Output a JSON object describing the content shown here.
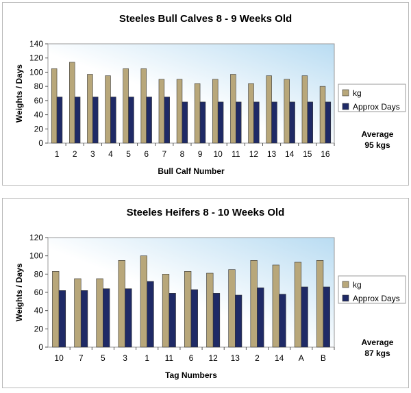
{
  "chart_data": [
    {
      "type": "bar",
      "title": "Steeles Bull Calves 8 - 9 Weeks Old",
      "xlabel": "Bull Calf Number",
      "ylabel": "Weights / Days",
      "ylim": [
        0,
        140
      ],
      "yticks": [
        0,
        20,
        40,
        60,
        80,
        100,
        120,
        140
      ],
      "grid": false,
      "legend_position": "right",
      "categories": [
        "1",
        "2",
        "3",
        "4",
        "5",
        "6",
        "7",
        "8",
        "9",
        "10",
        "11",
        "12",
        "13",
        "14",
        "15",
        "16"
      ],
      "series": [
        {
          "name": "kg",
          "color": "#b8a77a",
          "values": [
            105,
            114,
            97,
            95,
            105,
            105,
            90,
            90,
            84,
            90,
            97,
            84,
            95,
            90,
            95,
            80
          ]
        },
        {
          "name": "Approx  Days",
          "color": "#1f2a66",
          "values": [
            65,
            65,
            65,
            65,
            65,
            65,
            65,
            58,
            58,
            58,
            58,
            58,
            58,
            58,
            58,
            58
          ]
        }
      ],
      "annotation": [
        "Average",
        "95 kgs"
      ]
    },
    {
      "type": "bar",
      "title": "Steeles Heifers 8 - 10 Weeks Old",
      "xlabel": "Tag Numbers",
      "ylabel": "Weights / Days",
      "ylim": [
        0,
        120
      ],
      "yticks": [
        0,
        20,
        40,
        60,
        80,
        100,
        120
      ],
      "grid": false,
      "legend_position": "right",
      "categories": [
        "10",
        "7",
        "5",
        "3",
        "1",
        "11",
        "6",
        "12",
        "13",
        "2",
        "14",
        "A",
        "B"
      ],
      "series": [
        {
          "name": "kg",
          "color": "#b8a77a",
          "values": [
            83,
            75,
            75,
            95,
            100,
            80,
            83,
            81,
            85,
            95,
            90,
            93,
            95
          ]
        },
        {
          "name": "Approx  Days",
          "color": "#1f2a66",
          "values": [
            62,
            62,
            64,
            64,
            72,
            59,
            63,
            59,
            57,
            65,
            58,
            66,
            66
          ]
        }
      ],
      "annotation": [
        "Average",
        "87 kgs"
      ]
    }
  ]
}
